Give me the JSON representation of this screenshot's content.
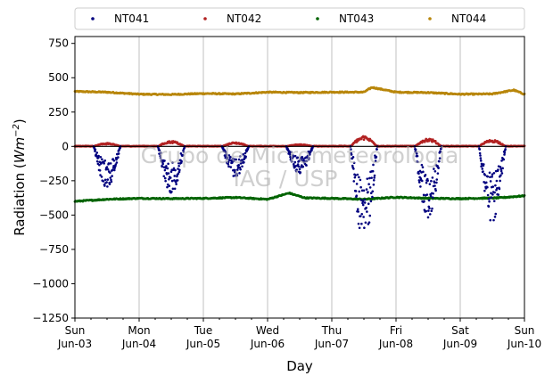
{
  "chart_data": {
    "type": "scatter",
    "xlabel": "Day",
    "ylabel_prefix": "Radiation (",
    "ylabel_unit": "Wm",
    "ylabel_exp": "−2",
    "ylabel_suffix": ")",
    "ylim": [
      -1250,
      800
    ],
    "yticks": [
      750,
      500,
      250,
      0,
      -250,
      -500,
      -750,
      -1000,
      -1250
    ],
    "ytick_labels": [
      "750",
      "500",
      "250",
      "0",
      "−250",
      "−500",
      "−750",
      "−1000",
      "−1250"
    ],
    "xlim": [
      "2018-06-03",
      "2018-06-10"
    ],
    "xticks": [
      {
        "date": "2018-06-03",
        "day": "Sun",
        "label": "Jun-03"
      },
      {
        "date": "2018-06-04",
        "day": "Mon",
        "label": "Jun-04"
      },
      {
        "date": "2018-06-05",
        "day": "Tue",
        "label": "Jun-05"
      },
      {
        "date": "2018-06-06",
        "day": "Wed",
        "label": "Jun-06"
      },
      {
        "date": "2018-06-07",
        "day": "Thu",
        "label": "Jun-07"
      },
      {
        "date": "2018-06-08",
        "day": "Fri",
        "label": "Jun-08"
      },
      {
        "date": "2018-06-09",
        "day": "Sat",
        "label": "Jun-09"
      },
      {
        "date": "2018-06-10",
        "day": "Sun",
        "label": "Jun-10"
      }
    ],
    "grid": "vertical",
    "legend_position": "top",
    "watermark": [
      "Grupo de Micrometeorologia",
      "IAG / USP"
    ],
    "series": [
      {
        "name": "NT041",
        "color": "#00007f",
        "baseline": 0,
        "daily_min": [
          -300,
          -340,
          -230,
          -200,
          -700,
          -520,
          -560
        ]
      },
      {
        "name": "NT042",
        "color": "#b22222",
        "baseline": 2,
        "daily_max": [
          25,
          40,
          30,
          15,
          75,
          60,
          50
        ]
      },
      {
        "name": "NT043",
        "color": "#006400",
        "night_level": -395,
        "day_level": -375,
        "points": [
          [
            "2018-06-03T00:00",
            -400
          ],
          [
            "2018-06-03T12:00",
            -385
          ],
          [
            "2018-06-04T00:00",
            -378
          ],
          [
            "2018-06-04T12:00",
            -380
          ],
          [
            "2018-06-05T00:00",
            -378
          ],
          [
            "2018-06-05T12:00",
            -372
          ],
          [
            "2018-06-06T00:00",
            -385
          ],
          [
            "2018-06-06T08:00",
            -340
          ],
          [
            "2018-06-06T14:00",
            -375
          ],
          [
            "2018-06-07T00:00",
            -378
          ],
          [
            "2018-06-07T12:00",
            -385
          ],
          [
            "2018-06-08T00:00",
            -370
          ],
          [
            "2018-06-08T12:00",
            -378
          ],
          [
            "2018-06-09T00:00",
            -380
          ],
          [
            "2018-06-09T14:00",
            -375
          ],
          [
            "2018-06-10T00:00",
            -360
          ]
        ]
      },
      {
        "name": "NT044",
        "color": "#b8860b",
        "points": [
          [
            "2018-06-03T00:00",
            400
          ],
          [
            "2018-06-03T12:00",
            395
          ],
          [
            "2018-06-04T00:00",
            380
          ],
          [
            "2018-06-04T12:00",
            378
          ],
          [
            "2018-06-05T00:00",
            385
          ],
          [
            "2018-06-05T12:00",
            382
          ],
          [
            "2018-06-06T00:00",
            395
          ],
          [
            "2018-06-06T12:00",
            392
          ],
          [
            "2018-06-07T00:00",
            395
          ],
          [
            "2018-06-07T12:00",
            395
          ],
          [
            "2018-06-07T15:00",
            430
          ],
          [
            "2018-06-08T00:00",
            395
          ],
          [
            "2018-06-08T12:00",
            392
          ],
          [
            "2018-06-09T00:00",
            380
          ],
          [
            "2018-06-09T12:00",
            382
          ],
          [
            "2018-06-09T20:00",
            410
          ],
          [
            "2018-06-10T00:00",
            380
          ]
        ]
      }
    ]
  }
}
